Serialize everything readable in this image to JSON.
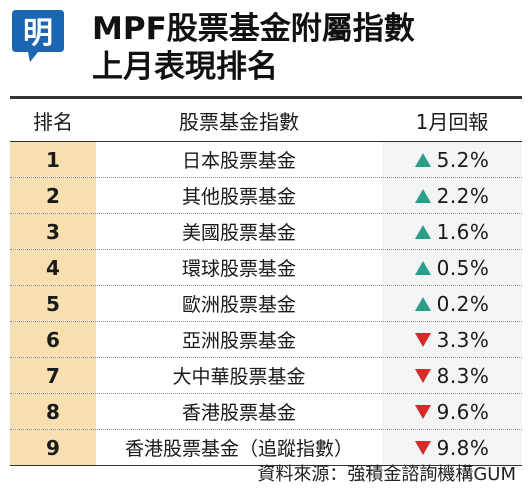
{
  "logo": {
    "char": "明",
    "color": "#1b66b3"
  },
  "title": {
    "line1": "MPF股票基金附屬指數",
    "line2": "上月表現排名"
  },
  "table": {
    "headers": {
      "rank": "排名",
      "name": "股票基金指數",
      "ret": "1月回報"
    },
    "rows": [
      {
        "rank": "1",
        "name": "日本股票基金",
        "dir": "up",
        "ret": "5.2%"
      },
      {
        "rank": "2",
        "name": "其他股票基金",
        "dir": "up",
        "ret": "2.2%"
      },
      {
        "rank": "3",
        "name": "美國股票基金",
        "dir": "up",
        "ret": "1.6%"
      },
      {
        "rank": "4",
        "name": "環球股票基金",
        "dir": "up",
        "ret": "0.5%"
      },
      {
        "rank": "5",
        "name": "歐洲股票基金",
        "dir": "up",
        "ret": "0.2%"
      },
      {
        "rank": "6",
        "name": "亞洲股票基金",
        "dir": "down",
        "ret": "3.3%"
      },
      {
        "rank": "7",
        "name": "大中華股票基金",
        "dir": "down",
        "ret": "8.3%"
      },
      {
        "rank": "8",
        "name": "香港股票基金",
        "dir": "down",
        "ret": "9.6%"
      },
      {
        "rank": "9",
        "name": "香港股票基金（追蹤指數）",
        "dir": "down",
        "ret": "9.8%"
      }
    ],
    "colors": {
      "rank_bg": "#f8dfb0",
      "ret_bg": "#f3f4f6",
      "up": "#2aa08a",
      "down": "#d8282a"
    }
  },
  "source": "資料來源：強積金諮詢機構GUM"
}
